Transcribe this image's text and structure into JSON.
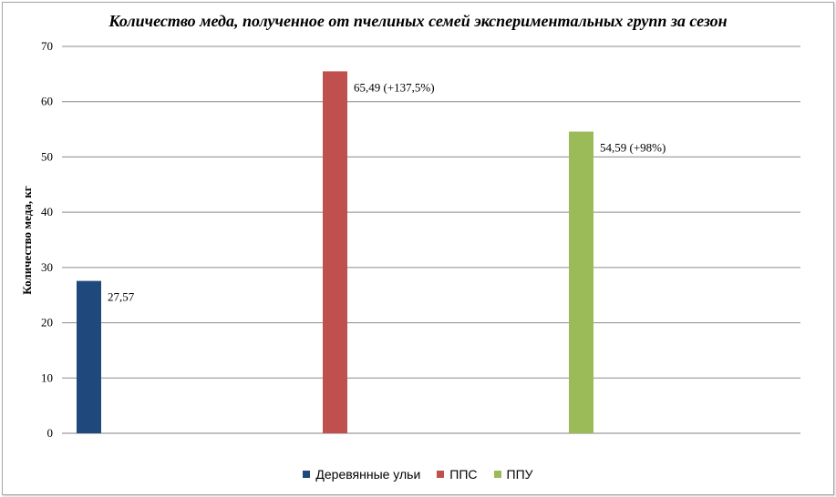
{
  "chart_data": {
    "type": "bar",
    "title": "Количество меда, полученное от пчелиных семей экспериментальных групп за сезон",
    "ylabel": "Количество меда, кг",
    "ylim": [
      0,
      70
    ],
    "yticks": [
      0,
      10,
      20,
      30,
      40,
      50,
      60,
      70
    ],
    "grid": true,
    "legend_position": "bottom",
    "series": [
      {
        "name": "Деревянные ульи",
        "value": 27.57,
        "label": "27,57",
        "color": "#1f497d"
      },
      {
        "name": "ППС",
        "value": 65.49,
        "label": "65,49 (+137,5%)",
        "color": "#c0504d"
      },
      {
        "name": "ППУ",
        "value": 54.59,
        "label": "54,59 (+98%)",
        "color": "#9bbb59"
      }
    ]
  }
}
